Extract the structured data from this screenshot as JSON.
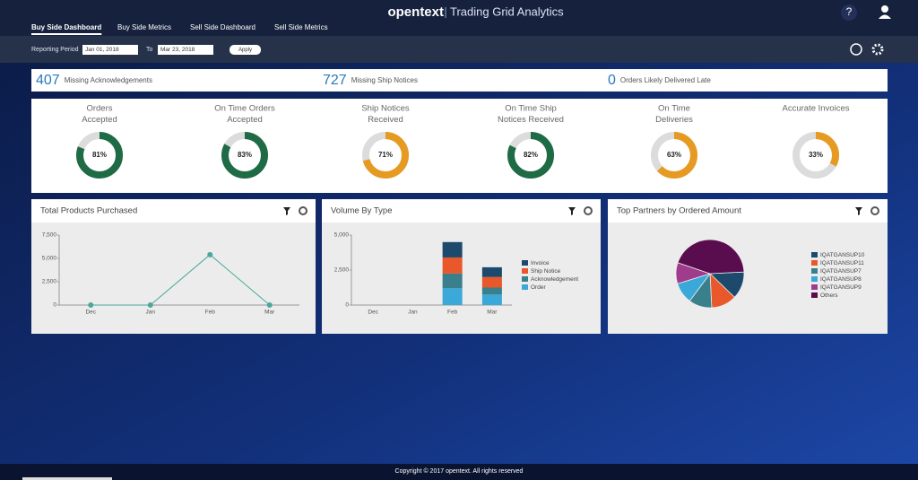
{
  "header": {
    "brand": "opentext",
    "product": "Trading Grid Analytics",
    "help": "?"
  },
  "tabs": [
    "Buy Side Dashboard",
    "Buy Side Metrics",
    "Sell Side Dashboard",
    "Sell Side Metrics"
  ],
  "active_tab": 0,
  "toolbar": {
    "period_label": "Reporting Period",
    "from": "Jan 01, 2018",
    "to_label": "To",
    "to": "Mar 23, 2018",
    "apply": "Apply"
  },
  "summary": [
    {
      "value": 407,
      "label": "Missing Acknowledgements"
    },
    {
      "value": 727,
      "label": "Missing Ship Notices"
    },
    {
      "value": 0,
      "label": "Orders Likely Delivered Late"
    }
  ],
  "gauges": [
    {
      "title": [
        "Orders",
        "Accepted"
      ],
      "value": 81,
      "value_label": "81%",
      "color": "#1e6b45"
    },
    {
      "title": [
        "On Time Orders",
        "Accepted"
      ],
      "value": 83,
      "value_label": "83%",
      "color": "#1e6b45"
    },
    {
      "title": [
        "Ship Notices",
        "Received"
      ],
      "value": 71,
      "value_label": "71%",
      "color": "#e69a22"
    },
    {
      "title": [
        "On Time Ship",
        "Notices Received"
      ],
      "value": 82,
      "value_label": "82%",
      "color": "#1e6b45"
    },
    {
      "title": [
        "On Time",
        "Deliveries"
      ],
      "value": 63,
      "value_label": "63%",
      "color": "#e69a22"
    },
    {
      "title": [
        "Accurate Invoices"
      ],
      "value": 33,
      "value_label": "33%",
      "color": "#e69a22"
    }
  ],
  "panels": [
    {
      "title": "Total Products Purchased",
      "chart": {
        "type": "line",
        "categories": [
          "Dec",
          "Jan",
          "Feb",
          "Mar"
        ],
        "values": [
          0,
          0,
          5400,
          0
        ],
        "color": "#4aa89a",
        "ylim": [
          0,
          7500
        ],
        "yticks": [
          0,
          {
            "value": 2500,
            "label": "2,500"
          },
          {
            "value": 5000,
            "label": "5,000"
          },
          {
            "value": 7500,
            "label": "7,500"
          }
        ]
      }
    },
    {
      "title": "Volume By Type",
      "chart": {
        "type": "stacked_bar",
        "categories": [
          "Dec",
          "Jan",
          "Feb",
          "Mar"
        ],
        "series": [
          {
            "name": "Invoice",
            "color": "#1d4a6c",
            "values": [
              0,
              0,
              1100,
              700
            ]
          },
          {
            "name": "Ship Notice",
            "color": "#e8582a",
            "values": [
              0,
              0,
              1150,
              750
            ]
          },
          {
            "name": "Acknowledgement",
            "color": "#3a7f8c",
            "values": [
              0,
              0,
              1050,
              500
            ]
          },
          {
            "name": "Order",
            "color": "#3aa8d8",
            "values": [
              0,
              0,
              1200,
              750
            ]
          }
        ],
        "ylim": [
          0,
          5000
        ],
        "yticks": [
          0,
          {
            "value": 2500,
            "label": "2,500"
          },
          {
            "value": 5000,
            "label": "5,000"
          }
        ]
      }
    },
    {
      "title": "Top Partners by Ordered Amount",
      "chart": {
        "type": "pie",
        "categories": [
          "IQATGANSUP10",
          "IQATGANSUP11",
          "IQATGANSUP7",
          "IQATGANSUP8",
          "IQATGANSUP9",
          "Others"
        ],
        "values": [
          13,
          12,
          11,
          10,
          10,
          44
        ],
        "colors": [
          "#1d4a6c",
          "#e8582a",
          "#3a7f8c",
          "#3aa8d8",
          "#a03c8c",
          "#5a0d4e"
        ]
      }
    }
  ],
  "footer": "Copyright © 2017 opentext. All rights reserved"
}
